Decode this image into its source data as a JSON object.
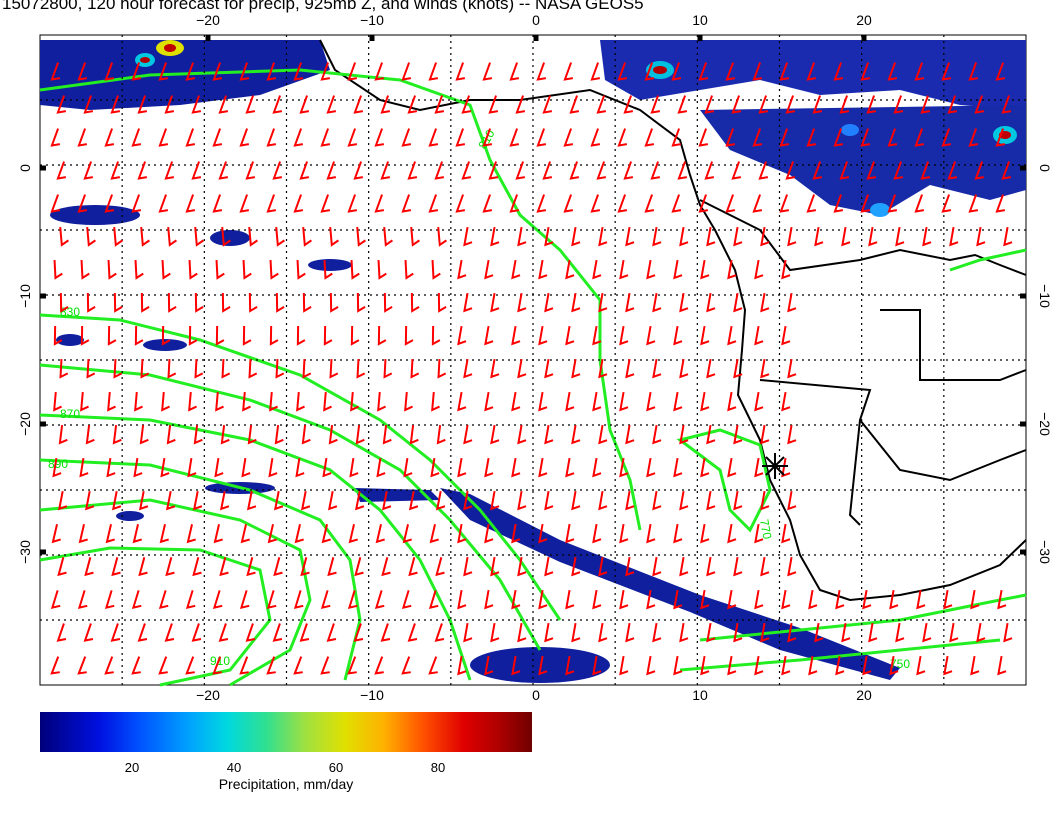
{
  "title": "15072800, 120 hour forecast for precip, 925mb Z, and winds (knots) -- NASA GEOS5",
  "map": {
    "lon_range": [
      -30,
      30
    ],
    "lat_range": [
      -40,
      10
    ],
    "lon_ticks": [
      -20,
      -10,
      0,
      10,
      20
    ],
    "lat_ticks": [
      0,
      -10,
      -20,
      -30
    ],
    "lon_tick_labels": [
      "−20",
      "−10",
      "0",
      "10",
      "20"
    ],
    "lat_tick_labels": [
      "0",
      "−10",
      "−20",
      "−30"
    ],
    "grid": true,
    "contour_color": "#00ee00",
    "wind_barb_color": "#ff0000",
    "coastline_color": "#000000",
    "contour_labels": [
      "810",
      "830",
      "850",
      "870",
      "890",
      "910",
      "770",
      "750",
      "800"
    ],
    "marker": "station-star"
  },
  "colorbar": {
    "label": "Precipitation, mm/day",
    "ticks": [
      "20",
      "40",
      "60",
      "80"
    ],
    "tick_values": [
      20,
      40,
      60,
      80
    ],
    "range": [
      0,
      100
    ],
    "colors": [
      "#00007a",
      "#0050ff",
      "#00d8e0",
      "#a0e040",
      "#e0e000",
      "#ff5000",
      "#b00000"
    ]
  }
}
